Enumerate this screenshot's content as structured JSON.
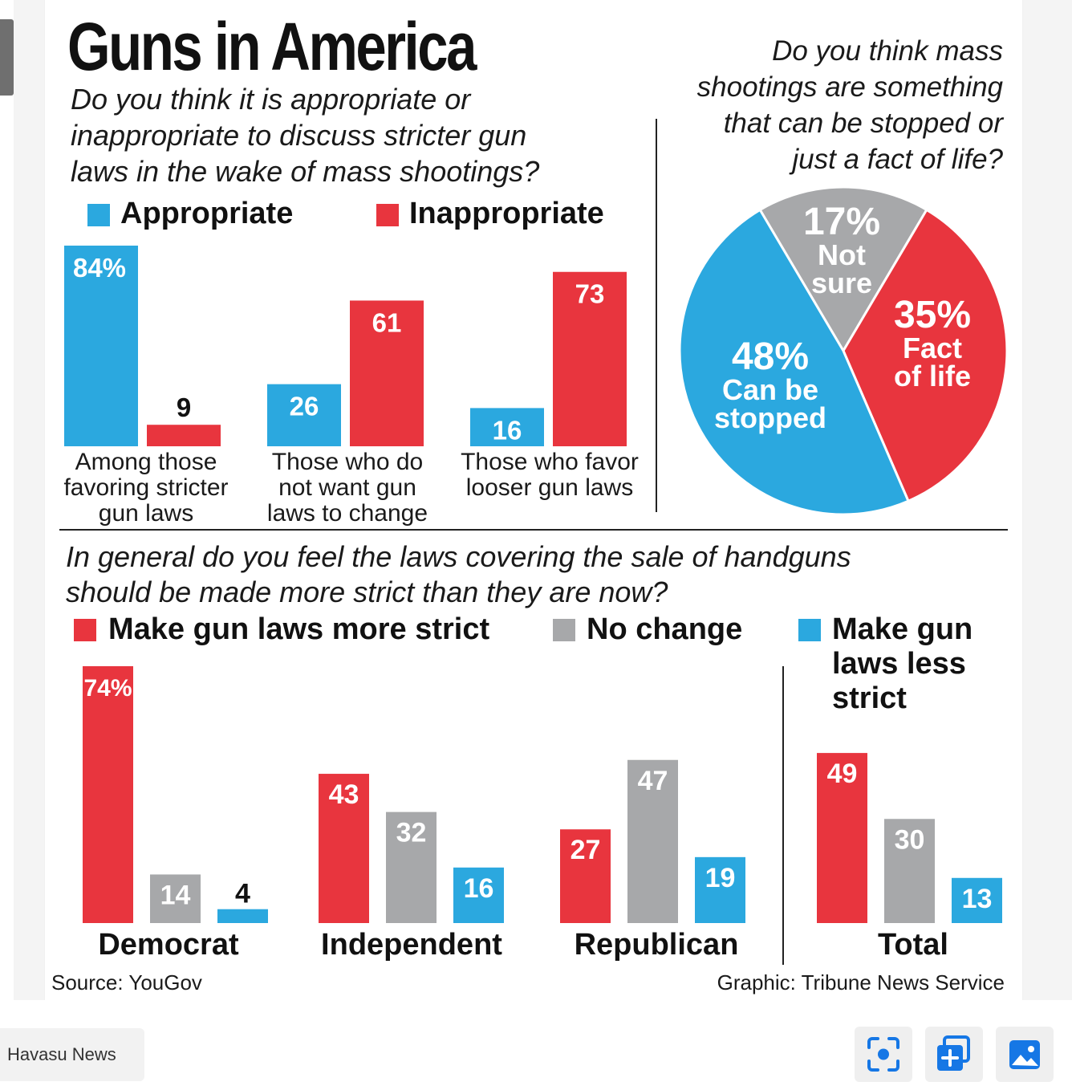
{
  "title": "Guns in America",
  "question1": [
    "Do you think it is appropriate or",
    "inappropriate to discuss stricter gun",
    "laws in the wake of mass shootings?"
  ],
  "question2": [
    "Do you think mass",
    "shootings are something",
    "that can be stopped or",
    "just a fact of life?"
  ],
  "question3": [
    "In general do you feel the laws covering the sale of handguns",
    "should be made more strict than they are now?"
  ],
  "legend1": {
    "appropriate": "Appropriate",
    "inappropriate": "Inappropriate"
  },
  "legend3": {
    "more_strict": "Make gun laws more strict",
    "no_change": "No change",
    "less_strict": [
      "Make gun",
      "laws less",
      "strict"
    ]
  },
  "source": "Source: YouGov",
  "credit": "Graphic: Tribune News Service",
  "footer": {
    "brand": "Havasu News"
  },
  "colors": {
    "blue": "#2ba8df",
    "red": "#e8353e",
    "gray": "#a7a8aa"
  },
  "chart_data": [
    {
      "type": "bar",
      "categories": [
        [
          "Among those",
          "favoring stricter",
          "gun laws"
        ],
        [
          "Those who do",
          "not want gun",
          "laws to change"
        ],
        [
          "Those who favor",
          "looser gun laws"
        ]
      ],
      "series": [
        {
          "name": "Appropriate",
          "values": [
            84,
            26,
            16
          ],
          "labels": [
            "84%",
            "26",
            "16"
          ]
        },
        {
          "name": "Inappropriate",
          "values": [
            9,
            61,
            73
          ],
          "labels": [
            "9",
            "61",
            "73"
          ]
        }
      ],
      "ylim": [
        0,
        84
      ]
    },
    {
      "type": "pie",
      "slices": [
        {
          "pct": "17%",
          "label": [
            "Not",
            "sure"
          ],
          "value": 17
        },
        {
          "pct": "35%",
          "label": [
            "Fact",
            "of life"
          ],
          "value": 35
        },
        {
          "pct": "48%",
          "label": [
            "Can be",
            "stopped"
          ],
          "value": 48
        }
      ]
    },
    {
      "type": "bar",
      "categories": [
        "Democrat",
        "Independent",
        "Republican",
        "Total"
      ],
      "series": [
        {
          "name": "Make gun laws more strict",
          "values": [
            74,
            43,
            27,
            49
          ],
          "labels": [
            "74%",
            "43",
            "27",
            "49"
          ]
        },
        {
          "name": "No change",
          "values": [
            14,
            32,
            47,
            30
          ],
          "labels": [
            "14",
            "32",
            "47",
            "30"
          ]
        },
        {
          "name": "Make gun laws less strict",
          "values": [
            4,
            16,
            19,
            13
          ],
          "labels": [
            "4",
            "16",
            "19",
            "13"
          ]
        }
      ],
      "ylim": [
        0,
        74
      ]
    }
  ]
}
